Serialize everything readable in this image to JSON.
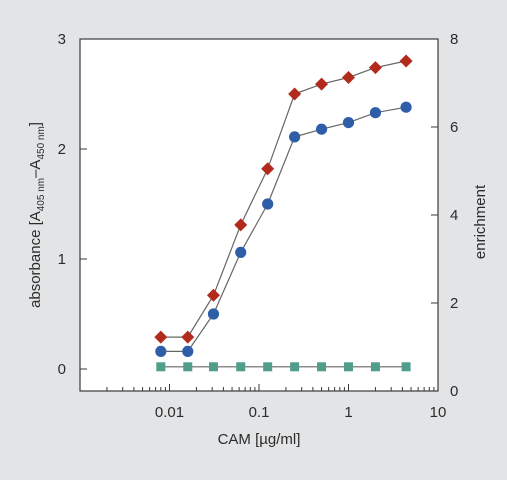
{
  "chart_data": {
    "type": "line",
    "xlabel": "CAM [µg/ml]",
    "ylabel_left": {
      "prefix": "absorbance [A",
      "sub1": "405 nm",
      "middle": "–A",
      "sub2": "450 nm",
      "suffix": "]"
    },
    "ylabel_right": "enrichment",
    "x_scale": "log",
    "xlim": [
      0.001,
      10
    ],
    "x_tick_labels": [
      "0.01",
      "0.1",
      "1",
      "10"
    ],
    "x_tick_values": [
      0.01,
      0.1,
      1,
      10
    ],
    "ylim_left": [
      -0.2,
      3
    ],
    "y_left_ticks": [
      "0",
      "1",
      "2",
      "3"
    ],
    "y_left_tick_values": [
      0,
      1,
      2,
      3
    ],
    "ylim_right": [
      0,
      8
    ],
    "y_right_ticks": [
      "0",
      "2",
      "4",
      "6",
      "8"
    ],
    "y_right_tick_values": [
      0,
      2,
      4,
      6,
      8
    ],
    "grid": false,
    "x": [
      0.008,
      0.016,
      0.031,
      0.0625,
      0.125,
      0.25,
      0.5,
      1,
      2,
      4.4
    ],
    "series": [
      {
        "marker": "diamond",
        "color": "#b22a1c",
        "axis": "left",
        "values": [
          0.29,
          0.29,
          0.67,
          1.31,
          1.82,
          2.5,
          2.59,
          2.65,
          2.74,
          2.8
        ]
      },
      {
        "marker": "circle",
        "color": "#2f5ea8",
        "axis": "left",
        "values": [
          0.16,
          0.16,
          0.5,
          1.06,
          1.5,
          2.11,
          2.18,
          2.24,
          2.33,
          2.38
        ]
      },
      {
        "marker": "square",
        "color": "#4f9d8b",
        "axis": "left",
        "values": [
          0.02,
          0.02,
          0.02,
          0.02,
          0.02,
          0.02,
          0.02,
          0.02,
          0.02,
          0.02
        ]
      }
    ]
  }
}
